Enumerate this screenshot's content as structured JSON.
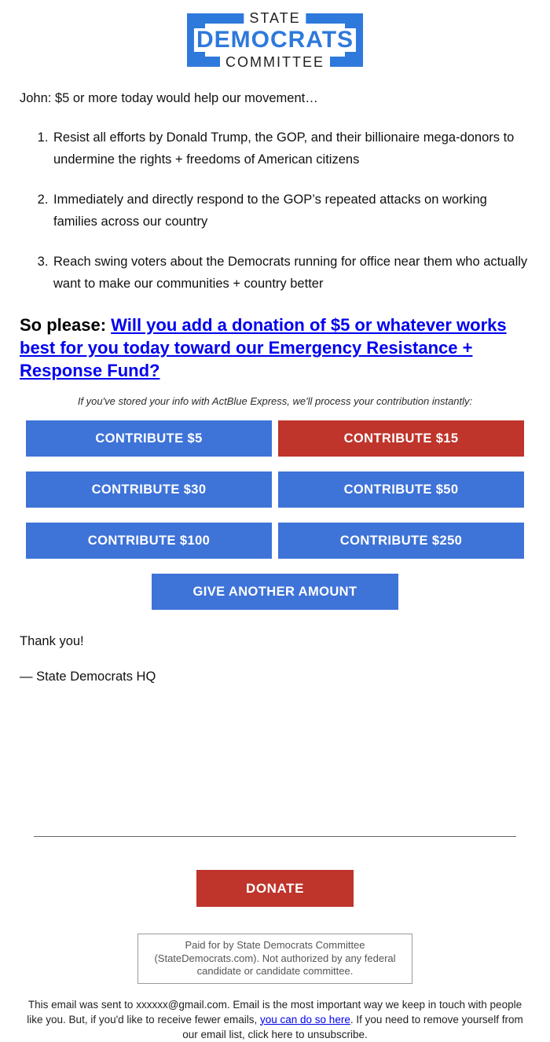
{
  "colors": {
    "logo_blue": "#2e79dc",
    "button_blue": "#3e73d8",
    "button_red": "#bf342b",
    "link_blue": "#0000ee"
  },
  "logo": {
    "top": "STATE",
    "middle": "DEMOCRATS",
    "bottom": "COMMITTEE"
  },
  "intro": "John: $5 or more today would help our movement…",
  "points": [
    "Resist all efforts by Donald Trump, the GOP, and their billionaire mega-donors to undermine the rights + freedoms of American citizens",
    "Immediately and directly respond to the GOP’s repeated attacks on working families across our country",
    "Reach swing voters about the Democrats running for office near them who actually want to make our communities + country better"
  ],
  "cta": {
    "prefix": "So please: ",
    "link": "Will you add a donation of $5 or whatever works best for you today toward our Emergency Resistance + Response Fund?"
  },
  "express_note": "If you've stored your info with ActBlue Express, we'll process your contribution instantly:",
  "buttons": [
    {
      "label": "CONTRIBUTE $5",
      "color": "blue"
    },
    {
      "label": "CONTRIBUTE $15",
      "color": "red"
    },
    {
      "label": "CONTRIBUTE $30",
      "color": "blue"
    },
    {
      "label": "CONTRIBUTE $50",
      "color": "blue"
    },
    {
      "label": "CONTRIBUTE $100",
      "color": "blue"
    },
    {
      "label": "CONTRIBUTE $250",
      "color": "blue"
    }
  ],
  "another_amount_label": "GIVE ANOTHER AMOUNT",
  "thanks": "Thank you!",
  "signature": "— State Democrats HQ",
  "donate_label": "DONATE",
  "disclaimer": "Paid for by State Democrats Committee (StateDemocrats.com). Not authorized by any federal candidate or candidate committee.",
  "footer": {
    "part1": "This email was sent to xxxxxx@gmail.com. Email is the most important way we keep in touch with people like you. But, if you'd like to receive fewer emails, ",
    "link1": "you can do so here",
    "part2": ". If you need to remove yourself from our email list, click here to unsubscribe."
  }
}
